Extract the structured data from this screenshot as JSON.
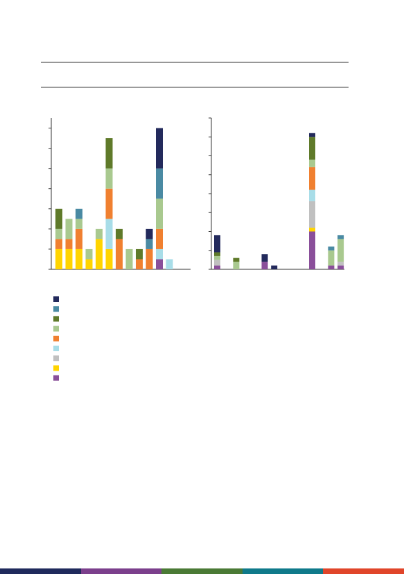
{
  "colors": {
    "navy": "#232a5c",
    "teal": "#4a8aa3",
    "olive": "#5f7a2a",
    "sage": "#a9c98f",
    "orange": "#f08030",
    "lightblue": "#a8dde8",
    "grey": "#c0c0c0",
    "yellow": "#ffd400",
    "purple": "#8a4f9a",
    "axis": "#333333",
    "rule": "#1a1a1a"
  },
  "footer": {
    "segments": [
      "#1f2a5c",
      "#7b3f8c",
      "#4a7a35",
      "#0f7a8a",
      "#e0452a"
    ]
  },
  "chart_data": [
    {
      "type": "bar",
      "stacked": true,
      "ylim": [
        0,
        15
      ],
      "yticks": [
        0,
        2,
        4,
        6,
        8,
        10,
        12,
        14
      ],
      "series_order": [
        "purple",
        "yellow",
        "grey",
        "lightblue",
        "orange",
        "sage",
        "olive",
        "teal",
        "navy"
      ],
      "bars": [
        {
          "yellow": 2,
          "orange": 1,
          "sage": 1,
          "olive": 2
        },
        {
          "yellow": 2,
          "orange": 1,
          "sage": 2
        },
        {
          "yellow": 2,
          "orange": 2,
          "sage": 1,
          "teal": 1
        },
        {
          "yellow": 1,
          "sage": 1
        },
        {
          "yellow": 3,
          "sage": 1
        },
        {
          "yellow": 2,
          "lightblue": 3,
          "orange": 3,
          "sage": 2,
          "olive": 3
        },
        {
          "orange": 3,
          "olive": 1
        },
        {
          "sage": 2
        },
        {
          "orange": 1,
          "olive": 1
        },
        {
          "orange": 2,
          "teal": 1,
          "navy": 1
        },
        {
          "purple": 1,
          "lightblue": 1,
          "orange": 2,
          "sage": 3,
          "teal": 3,
          "navy": 4
        },
        {
          "lightblue": 1
        }
      ]
    },
    {
      "type": "bar",
      "stacked": true,
      "ylim": [
        0,
        8
      ],
      "yticks": [
        0,
        1,
        2,
        3,
        4,
        5,
        6,
        7,
        8
      ],
      "series_order": [
        "purple",
        "yellow",
        "grey",
        "lightblue",
        "orange",
        "sage",
        "olive",
        "teal",
        "navy"
      ],
      "bars": [
        {
          "purple": 0.2,
          "grey": 0.3,
          "sage": 0.2,
          "olive": 0.2,
          "navy": 0.9
        },
        {},
        {
          "sage": 0.4,
          "olive": 0.2
        },
        {},
        {},
        {
          "purple": 0.4,
          "navy": 0.4
        },
        {
          "navy": 0.2
        },
        {},
        {},
        {},
        {
          "purple": 2,
          "yellow": 0.2,
          "grey": 1.4,
          "lightblue": 0.6,
          "orange": 1.2,
          "sage": 0.4,
          "olive": 1.2,
          "navy": 0.2
        },
        {},
        {
          "purple": 0.2,
          "sage": 0.8,
          "teal": 0.2
        },
        {
          "purple": 0.2,
          "grey": 0.2,
          "sage": 1.2,
          "teal": 0.2
        }
      ]
    }
  ],
  "legend": {
    "items": [
      "navy",
      "teal",
      "olive",
      "sage",
      "orange",
      "lightblue",
      "grey",
      "yellow",
      "purple"
    ]
  }
}
